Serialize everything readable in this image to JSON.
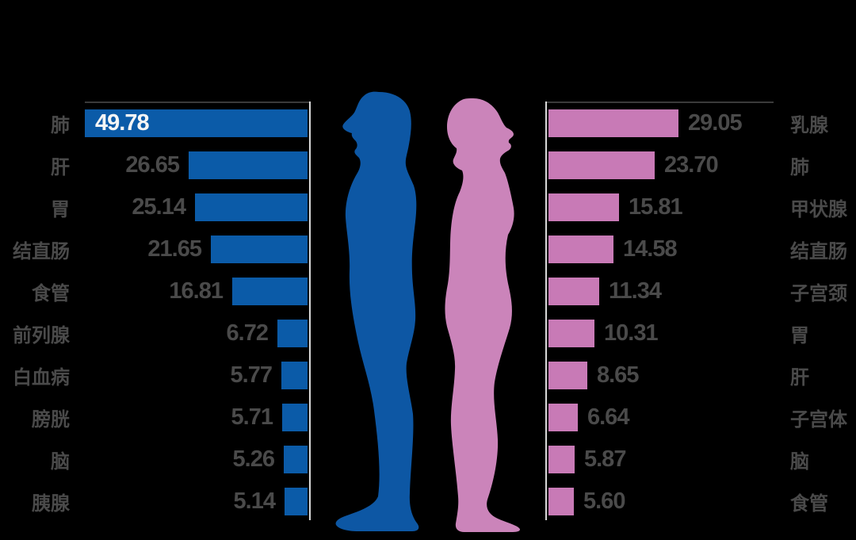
{
  "colors": {
    "background": "#000000",
    "male": "#0b5ba8",
    "female": "#c87ab6",
    "male_silhouette": "#0d57a4",
    "female_silhouette": "#cb84ba",
    "text_gray": "#4a4a4a",
    "value_on_bar": "#f5f5f5",
    "axis_dark": "#3a3a3a",
    "axis_light": "#d8d8d8"
  },
  "chart_data": {
    "type": "bar",
    "orientation": "horizontal",
    "layout": "bilateral-tornado",
    "value_format": "2dp",
    "value_axis_max": 50,
    "grid": false,
    "legend": "none",
    "series": [
      {
        "name": "male",
        "side": "left",
        "color": "#0b5ba8",
        "icon": "male-silhouette-icon",
        "data": [
          {
            "label": "肺",
            "value": 49.78
          },
          {
            "label": "肝",
            "value": 26.65
          },
          {
            "label": "胃",
            "value": 25.14
          },
          {
            "label": "结直肠",
            "value": 21.65
          },
          {
            "label": "食管",
            "value": 16.81
          },
          {
            "label": "前列腺",
            "value": 6.72
          },
          {
            "label": "白血病",
            "value": 5.77
          },
          {
            "label": "膀胱",
            "value": 5.71
          },
          {
            "label": "脑",
            "value": 5.26
          },
          {
            "label": "胰腺",
            "value": 5.14
          }
        ]
      },
      {
        "name": "female",
        "side": "right",
        "color": "#c87ab6",
        "icon": "female-silhouette-icon",
        "data": [
          {
            "label": "乳腺",
            "value": 29.05
          },
          {
            "label": "肺",
            "value": 23.7
          },
          {
            "label": "甲状腺",
            "value": 15.81
          },
          {
            "label": "结直肠",
            "value": 14.58
          },
          {
            "label": "子宫颈",
            "value": 11.34
          },
          {
            "label": "胃",
            "value": 10.31
          },
          {
            "label": "肝",
            "value": 8.65
          },
          {
            "label": "子宫体",
            "value": 6.64
          },
          {
            "label": "脑",
            "value": 5.87
          },
          {
            "label": "食管",
            "value": 5.6
          }
        ]
      }
    ]
  }
}
